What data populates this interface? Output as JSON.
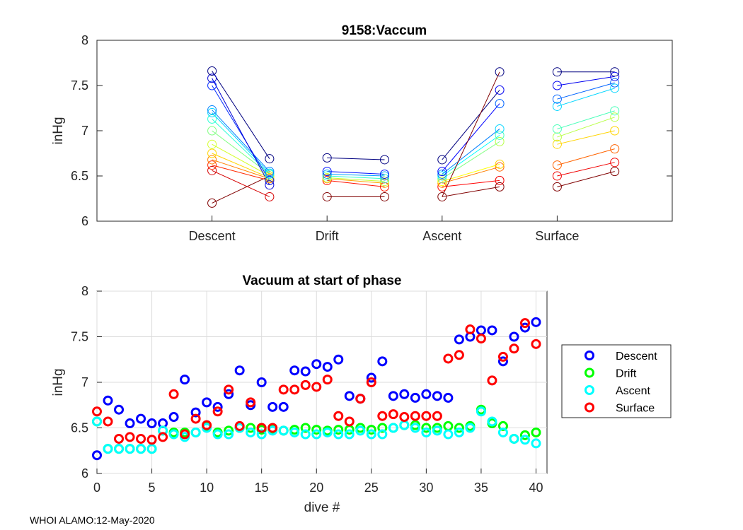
{
  "footer": "WHOI ALAMO:12-May-2020",
  "chart_data": [
    {
      "type": "line",
      "title": "9158:Vaccum",
      "xlabel": "",
      "ylabel": "inHg",
      "categories": [
        "Descent",
        "Drift",
        "Ascent",
        "Surface"
      ],
      "xlim": [
        0,
        5
      ],
      "ylim": [
        6,
        8
      ],
      "yticks": [
        "6",
        "6.5",
        "7",
        "7.5",
        "8"
      ],
      "grid": false,
      "note": "Each dive plotted as a line from phase start (x=k) to phase end (x=k+0.5); colour encodes dive number from dark blue (late dives) to red (early dives).",
      "segments": [
        {
          "phase": "Descent",
          "start_values": [
            6.2,
            6.56,
            6.62,
            6.68,
            6.75,
            6.85,
            7.0,
            7.13,
            7.2,
            7.23,
            7.5,
            7.58,
            7.66
          ],
          "end_values": [
            6.5,
            6.27,
            6.45,
            6.47,
            6.48,
            6.5,
            6.52,
            6.52,
            6.53,
            6.55,
            6.45,
            6.4,
            6.69
          ]
        },
        {
          "phase": "Drift",
          "start_values": [
            6.27,
            6.45,
            6.47,
            6.48,
            6.5,
            6.52,
            6.55,
            6.7
          ],
          "end_values": [
            6.27,
            6.38,
            6.42,
            6.44,
            6.47,
            6.5,
            6.52,
            6.68
          ]
        },
        {
          "phase": "Ascent",
          "start_values": [
            6.27,
            6.38,
            6.42,
            6.44,
            6.47,
            6.5,
            6.52,
            6.55,
            6.68
          ],
          "end_values": [
            6.38,
            6.45,
            6.6,
            6.63,
            6.88,
            6.95,
            7.02,
            7.3,
            7.45,
            7.65
          ]
        },
        {
          "phase": "Surface",
          "start_values": [
            6.38,
            6.5,
            6.62,
            6.85,
            6.93,
            7.02,
            7.27,
            7.35,
            7.5,
            7.65
          ],
          "end_values": [
            6.55,
            6.65,
            6.8,
            7.0,
            7.15,
            7.22,
            7.47,
            7.53,
            7.6,
            7.65
          ]
        }
      ]
    },
    {
      "type": "scatter",
      "title": "Vacuum at start of phase",
      "xlabel": "dive #",
      "ylabel": "inHg",
      "xlim": [
        0,
        41
      ],
      "ylim": [
        6,
        8
      ],
      "xticks": [
        "0",
        "5",
        "10",
        "15",
        "20",
        "25",
        "30",
        "35",
        "40"
      ],
      "yticks": [
        "6",
        "6.5",
        "7",
        "7.5",
        "8"
      ],
      "grid": true,
      "legend_position": "outside-right",
      "x": [
        0,
        1,
        2,
        3,
        4,
        5,
        6,
        7,
        8,
        9,
        10,
        11,
        12,
        13,
        14,
        15,
        16,
        17,
        18,
        19,
        20,
        21,
        22,
        23,
        24,
        25,
        26,
        27,
        28,
        29,
        30,
        31,
        32,
        33,
        34,
        35,
        36,
        37,
        38,
        39,
        40
      ],
      "series": [
        {
          "name": "Descent",
          "color": "#0000ff",
          "values": [
            6.2,
            6.8,
            6.7,
            6.55,
            6.6,
            6.55,
            6.55,
            6.62,
            7.03,
            6.67,
            6.78,
            6.73,
            6.87,
            7.13,
            6.75,
            7.0,
            6.73,
            6.73,
            7.13,
            7.12,
            7.2,
            7.17,
            7.25,
            6.85,
            6.82,
            7.05,
            7.23,
            6.85,
            6.87,
            6.83,
            6.87,
            6.85,
            6.83,
            7.47,
            7.5,
            7.57,
            7.57,
            7.23,
            7.5,
            7.6,
            7.66
          ]
        },
        {
          "name": "Drift",
          "color": "#00ff00",
          "values": [
            6.57,
            6.27,
            6.27,
            6.27,
            6.27,
            6.27,
            6.47,
            6.45,
            6.45,
            6.45,
            6.52,
            6.45,
            6.47,
            6.5,
            6.5,
            6.48,
            6.48,
            6.47,
            6.48,
            6.5,
            6.48,
            6.47,
            6.48,
            6.48,
            6.5,
            6.48,
            6.5,
            6.5,
            6.53,
            6.53,
            6.5,
            6.5,
            6.52,
            6.5,
            6.52,
            6.7,
            6.55,
            6.52,
            6.38,
            6.42,
            6.45
          ]
        },
        {
          "name": "Ascent",
          "color": "#00ffff",
          "values": [
            6.57,
            6.27,
            6.27,
            6.27,
            6.27,
            6.27,
            6.47,
            6.43,
            6.4,
            6.45,
            6.5,
            6.43,
            6.43,
            6.5,
            6.45,
            6.43,
            6.47,
            6.47,
            6.45,
            6.43,
            6.43,
            6.45,
            6.43,
            6.43,
            6.47,
            6.43,
            6.43,
            6.5,
            6.53,
            6.5,
            6.45,
            6.47,
            6.43,
            6.45,
            6.5,
            6.68,
            6.57,
            6.45,
            6.38,
            6.37,
            6.33
          ]
        },
        {
          "name": "Surface",
          "color": "#ff0000",
          "values": [
            6.68,
            6.57,
            6.38,
            6.4,
            6.38,
            6.37,
            6.4,
            6.87,
            6.43,
            6.6,
            6.53,
            6.68,
            6.92,
            6.52,
            6.78,
            6.5,
            6.5,
            6.92,
            6.92,
            6.97,
            6.95,
            7.03,
            6.63,
            6.57,
            6.82,
            7.0,
            6.63,
            6.65,
            6.62,
            6.63,
            6.63,
            6.63,
            7.26,
            7.3,
            7.58,
            7.48,
            7.02,
            7.28,
            7.37,
            7.65,
            7.42
          ]
        }
      ]
    }
  ]
}
